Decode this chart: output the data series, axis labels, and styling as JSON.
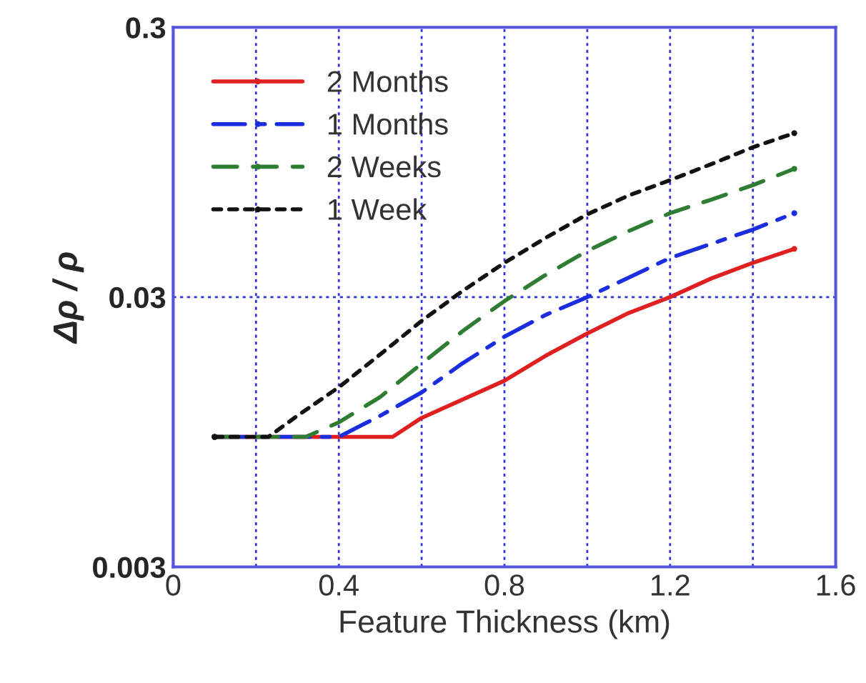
{
  "chart_data": {
    "type": "line",
    "xlabel": "Feature Thickness (km)",
    "ylabel": "Δρ / ρ",
    "xlim": [
      0,
      1.6
    ],
    "xticks": [
      0,
      {
        "value": 0.2,
        "label": null
      },
      0.4,
      {
        "value": 0.6,
        "label": null
      },
      0.8,
      {
        "value": 1.0,
        "label": null
      },
      1.2,
      {
        "value": 1.4,
        "label": null
      },
      1.6
    ],
    "ylim": [
      0.003,
      0.3
    ],
    "yticks": [
      0.003,
      0.03,
      0.3
    ],
    "log": "y",
    "grid": true,
    "legend": "top left",
    "series": [
      {
        "name": "2 Months",
        "color": "#e02020",
        "line_style": "solid",
        "x": [
          0.1,
          0.2,
          0.4,
          0.53,
          0.6,
          0.8,
          0.9,
          1.0,
          1.1,
          1.2,
          1.3,
          1.4,
          1.5
        ],
        "values": [
          0.0091,
          0.0091,
          0.0091,
          0.0091,
          0.0107,
          0.0147,
          0.0182,
          0.022,
          0.0262,
          0.03,
          0.0352,
          0.0402,
          0.0453
        ]
      },
      {
        "name": "1 Months",
        "color": "#1a2ee0",
        "line_style": "dashdot",
        "x": [
          0.1,
          0.2,
          0.4,
          0.5,
          0.6,
          0.7,
          0.8,
          0.9,
          1.0,
          1.2,
          1.4,
          1.5
        ],
        "values": [
          0.0091,
          0.0091,
          0.0091,
          0.0109,
          0.0133,
          0.0171,
          0.0214,
          0.0258,
          0.03,
          0.0419,
          0.0534,
          0.0614
        ]
      },
      {
        "name": "2 Weeks",
        "color": "#2e7d32",
        "line_style": "dashed",
        "x": [
          0.1,
          0.2,
          0.32,
          0.4,
          0.5,
          0.6,
          0.7,
          0.8,
          0.9,
          1.0,
          1.1,
          1.2,
          1.3,
          1.4,
          1.5
        ],
        "values": [
          0.0091,
          0.0091,
          0.0091,
          0.0103,
          0.0128,
          0.017,
          0.0225,
          0.029,
          0.0363,
          0.0445,
          0.0527,
          0.0614,
          0.069,
          0.078,
          0.0897
        ]
      },
      {
        "name": "1 Week",
        "color": "#111111",
        "line_style": "dotted",
        "x": [
          0.1,
          0.23,
          0.3,
          0.4,
          0.5,
          0.6,
          0.7,
          0.8,
          0.9,
          1.0,
          1.1,
          1.2,
          1.3,
          1.4,
          1.5
        ],
        "values": [
          0.0091,
          0.0091,
          0.0109,
          0.0139,
          0.0184,
          0.0245,
          0.0317,
          0.0402,
          0.0498,
          0.0608,
          0.0714,
          0.0814,
          0.0934,
          0.1078,
          0.1216
        ]
      }
    ]
  }
}
